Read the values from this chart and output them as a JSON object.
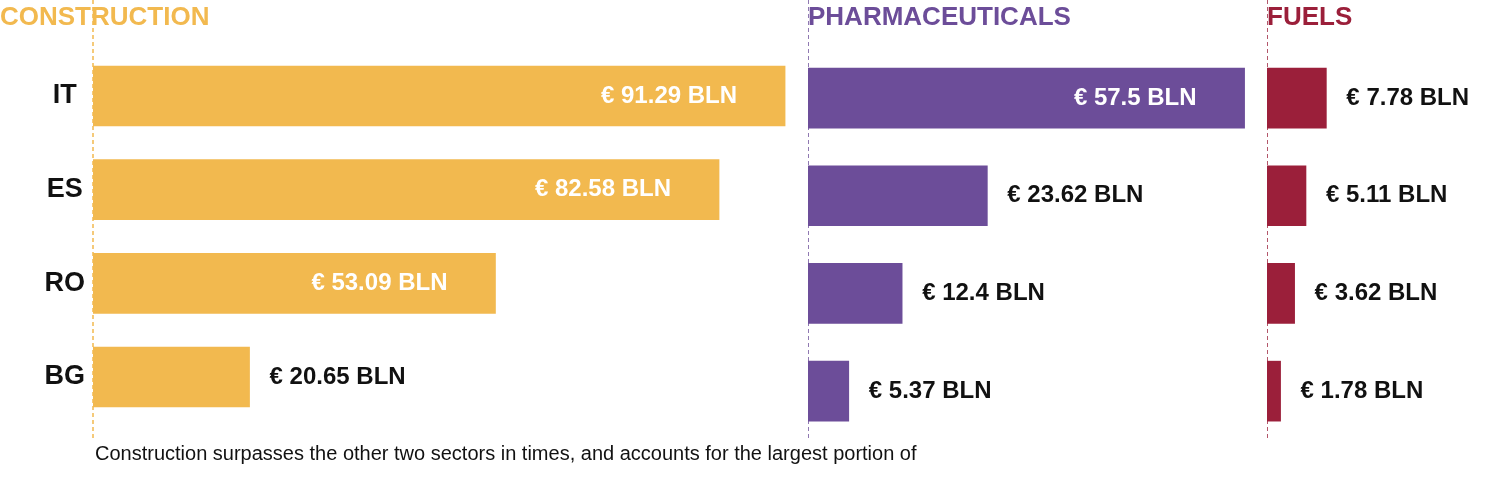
{
  "chart_data": [
    {
      "type": "bar",
      "orientation": "horizontal",
      "title": "CONSTRUCTION",
      "categories": [
        "IT",
        "ES",
        "RO",
        "BG"
      ],
      "tick_labels": "y",
      "series": [
        {
          "color": "#f2b94f",
          "values": [
            91.29,
            82.58,
            53.09,
            20.65
          ],
          "value_labels": [
            "€ 91.29 BLN",
            "€ 82.58 BLN",
            "€ 53.09 BLN",
            "€ 20.65 BLN"
          ]
        }
      ],
      "annotations": [
        "Construction surpasses the other two sectors in times, and accounts for the largest portion of"
      ]
    },
    {
      "type": "bar",
      "orientation": "horizontal",
      "title": "PHARMACEUTICALS",
      "categories": [
        null,
        null,
        null,
        null
      ],
      "tick_labels": false,
      "series": [
        {
          "color": "#6c4d99",
          "values": [
            57.5,
            23.62,
            12.4,
            5.37
          ],
          "value_labels": [
            "€ 57.5 BLN",
            "€ 23.62 BLN",
            "€ 12.4 BLN",
            "€ 5.37 BLN"
          ]
        }
      ]
    },
    {
      "type": "bar",
      "orientation": "horizontal",
      "title": "FUELS",
      "categories": [
        null,
        null,
        null,
        null
      ],
      "tick_labels": false,
      "series": [
        {
          "color": "#9b1f3a",
          "values": [
            7.78,
            5.11,
            3.62,
            1.78
          ],
          "value_labels": [
            "€ 7.78 BLN",
            "€ 5.11 BLN",
            "€ 3.62 BLN",
            "€ 1.78 BLN"
          ]
        }
      ]
    }
  ]
}
